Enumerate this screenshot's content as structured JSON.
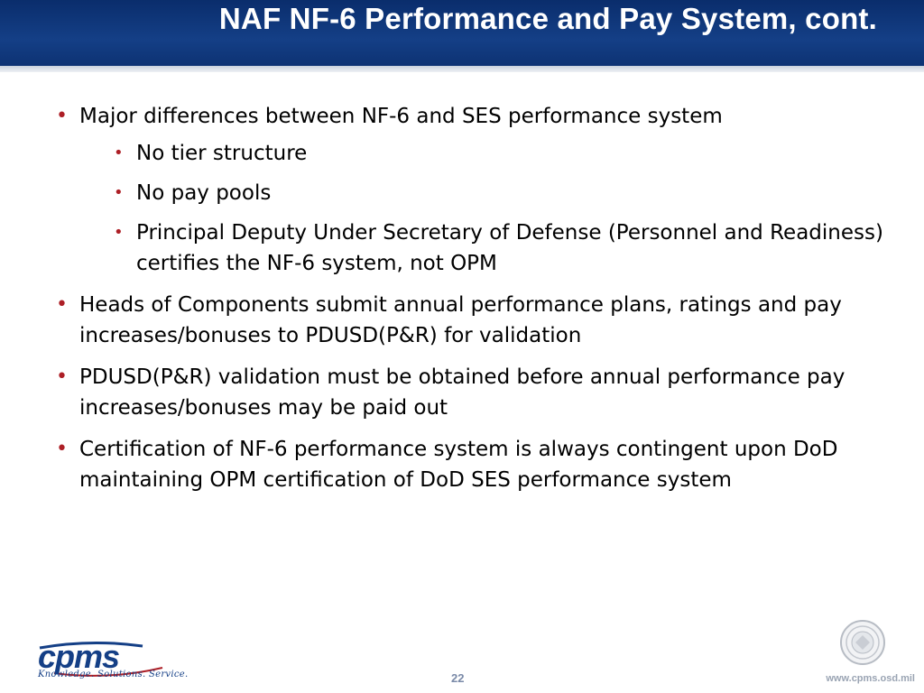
{
  "header": {
    "title": "NAF NF-6 Performance and Pay System, cont."
  },
  "bullets": [
    {
      "text": "Major differences between NF-6 and SES performance system",
      "sub": [
        "No tier structure",
        "No pay pools",
        "Principal Deputy Under Secretary of Defense (Personnel and Readiness) certifies the NF-6 system, not OPM"
      ]
    },
    {
      "text": "Heads of Components submit annual performance plans, ratings and pay increases/bonuses to PDUSD(P&R) for validation"
    },
    {
      "text": "PDUSD(P&R) validation must be obtained before annual performance pay increases/bonuses may be paid out"
    },
    {
      "text": "Certification of NF-6 performance system is always contingent upon DoD maintaining OPM certification of DoD SES performance system"
    }
  ],
  "bullet_glyph": "•",
  "footer": {
    "logo_text": "cpms",
    "tagline": "Knowledge. Solutions. Service.",
    "page_number": "22",
    "url": "www.cpms.osd.mil",
    "seal_icon": "dod-seal-icon"
  },
  "colors": {
    "header_bg": "#143f86",
    "bullet": "#ad1f26",
    "logo": "#143f86"
  }
}
